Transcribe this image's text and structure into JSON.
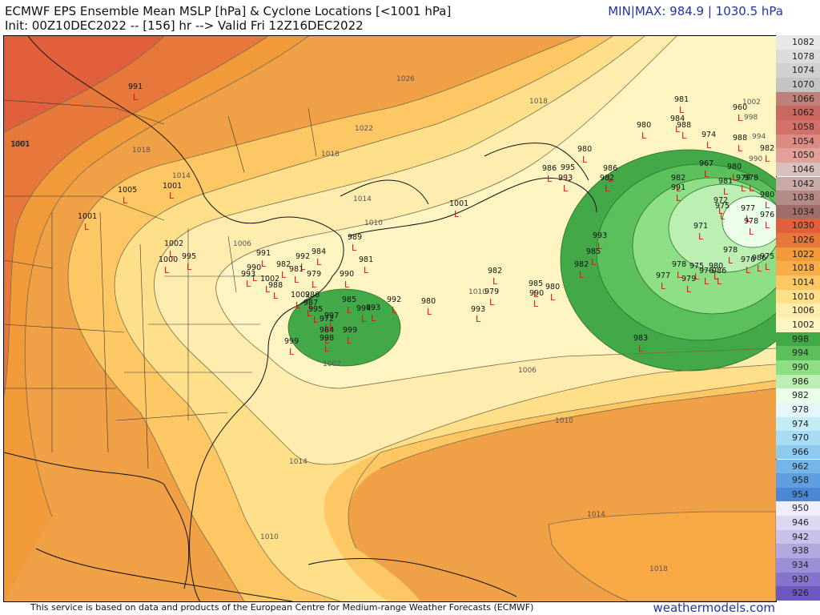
{
  "header": {
    "title_line1": "ECMWF EPS Ensemble Mean MSLP [hPa] & Cyclone Locations [<1001 hPa]",
    "title_line2": "Init: 00Z10DEC2022 -- [156] hr --> Valid Fri 12Z16DEC2022",
    "minmax": "MIN|MAX: 984.9 | 1030.5 hPa"
  },
  "footer": {
    "credit": "This service is based on data and products of the European Centre for Medium-range Weather Forecasts (ECMWF)",
    "brand": "weathermodels.com"
  },
  "colors": {
    "ocean_low": "#43a847",
    "band_994": "#5bbf5b",
    "band_990": "#8ede86",
    "band_986": "#bcefb2",
    "core_982": "#ecffe8",
    "band_1002": "#fff5c2",
    "band_1006": "#ffedb0",
    "band_1010": "#ffe08a",
    "band_1014": "#fdc864",
    "band_1018": "#f8ae48",
    "band_1022": "#f09a3a",
    "band_1026": "#e8783a",
    "band_1030": "#e0603c",
    "cyclone_marker": "#d41818"
  },
  "colorbar": [
    {
      "label": "1082",
      "color": "#e8e8e8"
    },
    {
      "label": "1078",
      "color": "#dcdcdc"
    },
    {
      "label": "1074",
      "color": "#d0d0d0"
    },
    {
      "label": "1070",
      "color": "#c4c4c4"
    },
    {
      "label": "1066",
      "color": "#c0807a"
    },
    {
      "label": "1062",
      "color": "#c8685e"
    },
    {
      "label": "1058",
      "color": "#d4706a"
    },
    {
      "label": "1054",
      "color": "#dc8a84"
    },
    {
      "label": "1050",
      "color": "#e2a09a"
    },
    {
      "label": "1046",
      "color": "#d8c0bc"
    },
    {
      "label": "1042",
      "color": "#c8aaa6"
    },
    {
      "label": "1038",
      "color": "#b48a86"
    },
    {
      "label": "1034",
      "color": "#a06e6a"
    },
    {
      "label": "1030",
      "color": "#e0603c"
    },
    {
      "label": "1026",
      "color": "#e8783a"
    },
    {
      "label": "1022",
      "color": "#f09a3a"
    },
    {
      "label": "1018",
      "color": "#f8ae48"
    },
    {
      "label": "1014",
      "color": "#fdc864"
    },
    {
      "label": "1010",
      "color": "#ffe08a"
    },
    {
      "label": "1006",
      "color": "#ffedb0"
    },
    {
      "label": "1002",
      "color": "#fff5c2"
    },
    {
      "label": "998",
      "color": "#43a847"
    },
    {
      "label": "994",
      "color": "#5bbf5b"
    },
    {
      "label": "990",
      "color": "#8ede86"
    },
    {
      "label": "986",
      "color": "#bcefb2"
    },
    {
      "label": "982",
      "color": "#ecffe8"
    },
    {
      "label": "978",
      "color": "#e4f8fc"
    },
    {
      "label": "974",
      "color": "#c4ecf8"
    },
    {
      "label": "970",
      "color": "#a8dcf4"
    },
    {
      "label": "966",
      "color": "#8ccaf0"
    },
    {
      "label": "962",
      "color": "#74b6ea"
    },
    {
      "label": "958",
      "color": "#609ee0"
    },
    {
      "label": "954",
      "color": "#4c86d6"
    },
    {
      "label": "950",
      "color": "#f0eefa"
    },
    {
      "label": "946",
      "color": "#dcd8f2"
    },
    {
      "label": "942",
      "color": "#c8c2ea"
    },
    {
      "label": "938",
      "color": "#b2a8e0"
    },
    {
      "label": "934",
      "color": "#9c8ed6"
    },
    {
      "label": "930",
      "color": "#8674cc"
    },
    {
      "label": "926",
      "color": "#6e58c0"
    }
  ],
  "isobar_labels": [
    "1026",
    "1022",
    "1018",
    "1014",
    "1010",
    "1006",
    "1002",
    "1018",
    "1002",
    "998",
    "994",
    "990",
    "1001",
    "1018",
    "1014",
    "1010",
    "1006",
    "1010",
    "1014",
    "1010",
    "1014",
    "1018",
    "1022",
    "1018",
    "1010",
    "1006",
    "1014",
    "1010",
    "1018",
    "1022",
    "1018"
  ],
  "cyclones": [
    {
      "p": "991"
    },
    {
      "p": "1001"
    },
    {
      "p": "1005"
    },
    {
      "p": "1001"
    },
    {
      "p": "1001"
    },
    {
      "p": "1002"
    },
    {
      "p": "1000"
    },
    {
      "p": "995"
    },
    {
      "p": "991"
    },
    {
      "p": "990"
    },
    {
      "p": "993"
    },
    {
      "p": "989"
    },
    {
      "p": "984"
    },
    {
      "p": "981"
    },
    {
      "p": "990"
    },
    {
      "p": "1002"
    },
    {
      "p": "982"
    },
    {
      "p": "992"
    },
    {
      "p": "981"
    },
    {
      "p": "979"
    },
    {
      "p": "988"
    },
    {
      "p": "986"
    },
    {
      "p": "1002"
    },
    {
      "p": "987"
    },
    {
      "p": "995"
    },
    {
      "p": "997"
    },
    {
      "p": "972"
    },
    {
      "p": "984"
    },
    {
      "p": "998"
    },
    {
      "p": "999"
    },
    {
      "p": "985"
    },
    {
      "p": "994"
    },
    {
      "p": "993"
    },
    {
      "p": "999"
    },
    {
      "p": "992"
    },
    {
      "p": "980"
    },
    {
      "p": "982"
    },
    {
      "p": "979"
    },
    {
      "p": "993"
    },
    {
      "p": "985"
    },
    {
      "p": "990"
    },
    {
      "p": "980"
    },
    {
      "p": "1001"
    },
    {
      "p": "986"
    },
    {
      "p": "993"
    },
    {
      "p": "995"
    },
    {
      "p": "980"
    },
    {
      "p": "986"
    },
    {
      "p": "982"
    },
    {
      "p": "993"
    },
    {
      "p": "985"
    },
    {
      "p": "982"
    },
    {
      "p": "983"
    },
    {
      "p": "981"
    },
    {
      "p": "984"
    },
    {
      "p": "988"
    },
    {
      "p": "980"
    },
    {
      "p": "974"
    },
    {
      "p": "960"
    },
    {
      "p": "988"
    },
    {
      "p": "982"
    },
    {
      "p": "967"
    },
    {
      "p": "980"
    },
    {
      "p": "981"
    },
    {
      "p": "979"
    },
    {
      "p": "978"
    },
    {
      "p": "982"
    },
    {
      "p": "991"
    },
    {
      "p": "972"
    },
    {
      "p": "975"
    },
    {
      "p": "977"
    },
    {
      "p": "980"
    },
    {
      "p": "971"
    },
    {
      "p": "978"
    },
    {
      "p": "976"
    },
    {
      "p": "986"
    },
    {
      "p": "978"
    },
    {
      "p": "978"
    },
    {
      "p": "975"
    },
    {
      "p": "976"
    },
    {
      "p": "980"
    },
    {
      "p": "979"
    },
    {
      "p": "986"
    },
    {
      "p": "977"
    },
    {
      "p": "976"
    },
    {
      "p": "975"
    }
  ]
}
